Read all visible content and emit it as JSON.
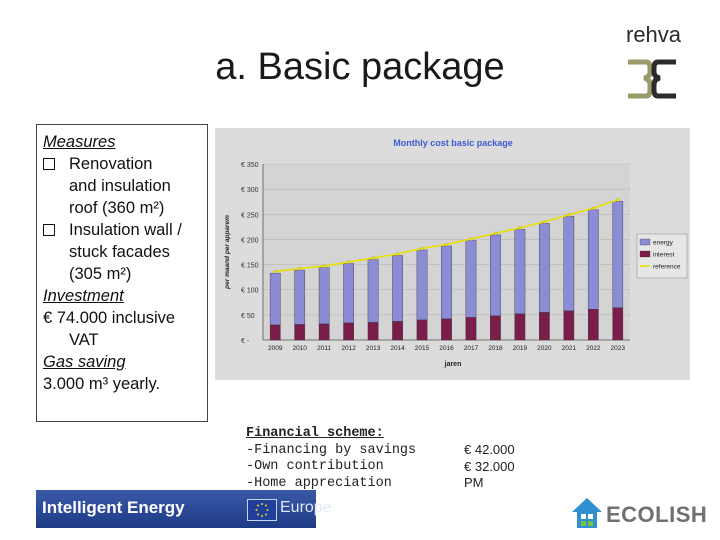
{
  "title": "a. Basic package",
  "logo": {
    "word": "rehva"
  },
  "measures": {
    "heading": "Measures",
    "items": [
      {
        "lines": [
          "Renovation",
          "and insulation",
          "roof (360 m²)"
        ]
      },
      {
        "lines": [
          "Insulation wall /",
          "stuck facades",
          "(305 m²)"
        ]
      }
    ],
    "investment_heading": "Investment",
    "investment_lines": [
      "€ 74.000 inclusive",
      "VAT"
    ],
    "gas_heading": "Gas saving",
    "gas_value": "3.000 m³  yearly."
  },
  "chart_data": {
    "type": "bar",
    "title": "Monthly cost basic package",
    "xlabel": "jaren",
    "ylabel": "per maand per apparem",
    "categories": [
      "2009",
      "2010",
      "2011",
      "2012",
      "2013",
      "2014",
      "2015",
      "2016",
      "2017",
      "2018",
      "2019",
      "2020",
      "2021",
      "2022",
      "2023"
    ],
    "y_ticks": [
      "€ -",
      "€ 50",
      "€ 100",
      "€ 150",
      "€ 200",
      "€ 250",
      "€ 300",
      "€ 350"
    ],
    "ylim": [
      0,
      350
    ],
    "stacked": true,
    "legend": "right",
    "series": [
      {
        "name": "interest",
        "color": "#7b1d4a",
        "values": [
          30,
          31,
          32,
          34,
          35,
          37,
          40,
          42,
          45,
          48,
          52,
          55,
          58,
          61,
          64
        ]
      },
      {
        "name": "energy",
        "color": "#8c8cd6",
        "values": [
          103,
          108,
          112,
          118,
          125,
          131,
          139,
          145,
          153,
          161,
          168,
          177,
          188,
          198,
          212
        ]
      },
      {
        "name": "reference",
        "color": "#e8e000",
        "type": "line",
        "values": [
          136,
          142,
          147,
          155,
          163,
          171,
          182,
          190,
          201,
          212,
          223,
          235,
          249,
          262,
          279
        ]
      }
    ]
  },
  "financial": {
    "heading": "Financial scheme:",
    "rows": [
      "-Financing by savings",
      "-Own contribution",
      "-Home appreciation"
    ],
    "values": [
      "€ 42.000",
      "€ 32.000",
      "PM"
    ]
  },
  "footer": {
    "iee_text": "Intelligent Energy",
    "iee_europe": "Europe",
    "ecolish": "ECOLISH"
  },
  "colors": {
    "grid_bg": "#dcdcdc",
    "title_color": "#3e5bd0"
  }
}
